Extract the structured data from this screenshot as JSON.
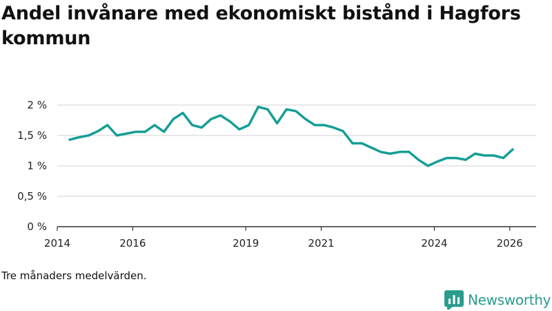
{
  "header": {
    "title": "Andel invånare med ekonomiskt bistånd i Hagfors kommun"
  },
  "footer": {
    "note": "Tre månaders medelvärden.",
    "brand": "Newsworthy"
  },
  "colors": {
    "line": "#159e96",
    "grid": "#d9d9d9",
    "axis": "#333333",
    "brand": "#2a9d8f"
  },
  "chart_data": {
    "type": "line",
    "title": "Andel invånare med ekonomiskt bistånd i Hagfors kommun",
    "xlabel": "",
    "ylabel": "",
    "xlim": [
      2014.0,
      2026.7
    ],
    "ylim": [
      0,
      2
    ],
    "grid": true,
    "legend": "none",
    "y_ticks": [
      {
        "value": 0,
        "label": "0 %"
      },
      {
        "value": 0.5,
        "label": "0,5 %"
      },
      {
        "value": 1,
        "label": "1 %"
      },
      {
        "value": 1.5,
        "label": "1,5 %"
      },
      {
        "value": 2,
        "label": "2 %"
      }
    ],
    "x_ticks": [
      {
        "value": 2014,
        "label": "2014"
      },
      {
        "value": 2016,
        "label": "2016"
      },
      {
        "value": 2019,
        "label": "2019"
      },
      {
        "value": 2021,
        "label": "2021"
      },
      {
        "value": 2024,
        "label": "2024"
      },
      {
        "value": 2026,
        "label": "2026"
      }
    ],
    "series": [
      {
        "name": "Andel invånare med ekonomiskt bistånd",
        "x": [
          2014.33,
          2014.58,
          2014.83,
          2015.08,
          2015.33,
          2015.58,
          2015.83,
          2016.08,
          2016.33,
          2016.58,
          2016.83,
          2017.08,
          2017.33,
          2017.58,
          2017.83,
          2018.08,
          2018.33,
          2018.58,
          2018.83,
          2019.08,
          2019.33,
          2019.58,
          2019.83,
          2020.08,
          2020.33,
          2020.58,
          2020.83,
          2021.08,
          2021.33,
          2021.58,
          2021.83,
          2022.08,
          2022.33,
          2022.58,
          2022.83,
          2023.08,
          2023.33,
          2023.58,
          2023.83,
          2024.08,
          2024.33,
          2024.58,
          2024.83,
          2025.08,
          2025.33,
          2025.58,
          2025.83,
          2026.08
        ],
        "values": [
          1.43,
          1.47,
          1.5,
          1.57,
          1.67,
          1.5,
          1.53,
          1.56,
          1.56,
          1.67,
          1.56,
          1.77,
          1.87,
          1.67,
          1.63,
          1.77,
          1.83,
          1.73,
          1.6,
          1.67,
          1.97,
          1.93,
          1.7,
          1.93,
          1.9,
          1.77,
          1.67,
          1.67,
          1.63,
          1.57,
          1.37,
          1.37,
          1.3,
          1.23,
          1.2,
          1.23,
          1.23,
          1.1,
          1.0,
          1.07,
          1.13,
          1.13,
          1.1,
          1.2,
          1.17,
          1.17,
          1.13,
          1.27
        ]
      }
    ]
  }
}
